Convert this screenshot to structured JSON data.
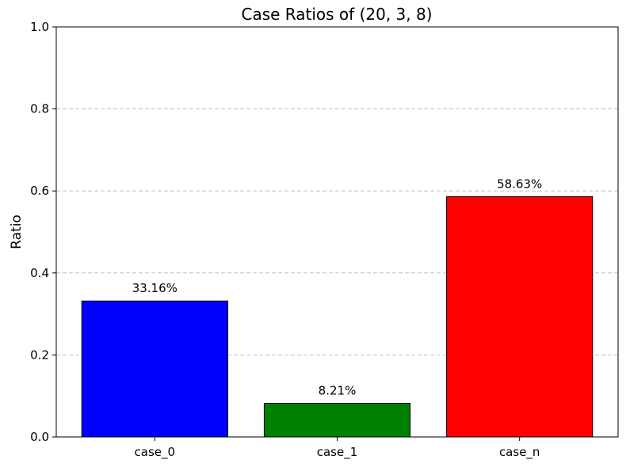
{
  "chart_data": {
    "type": "bar",
    "title": "Case Ratios of (20, 3, 8)",
    "xlabel": "",
    "ylabel": "Ratio",
    "categories": [
      "case_0",
      "case_1",
      "case_n"
    ],
    "values": [
      0.3316,
      0.0821,
      0.5863
    ],
    "data_labels": [
      "33.16%",
      "8.21%",
      "58.63%"
    ],
    "colors": [
      "#0000ff",
      "#008000",
      "#ff0000"
    ],
    "edge_color": "#000000",
    "ylim": [
      0,
      1.0
    ],
    "yticks": [
      0.0,
      0.2,
      0.4,
      0.6,
      0.8,
      1.0
    ],
    "ytick_labels": [
      "0.0",
      "0.2",
      "0.4",
      "0.6",
      "0.8",
      "1.0"
    ],
    "grid": "y-dashed",
    "legend": "none"
  }
}
